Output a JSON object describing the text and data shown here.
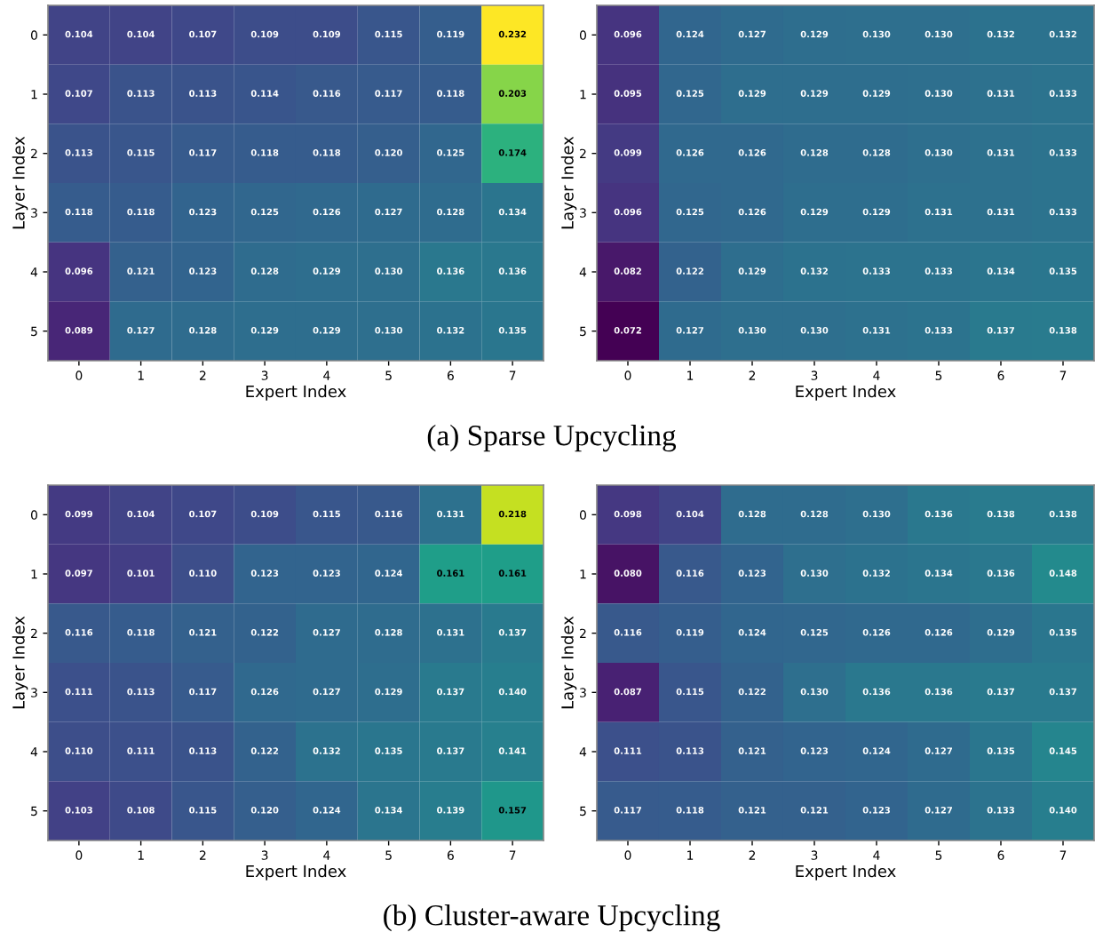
{
  "chart_data": [
    {
      "type": "heatmap",
      "xlabel": "Expert Index",
      "ylabel": "Layer Index",
      "data_labels": true,
      "annotations": [
        "(a) Sparse Upcycling"
      ],
      "categories": [
        "0",
        "1",
        "2",
        "3",
        "4",
        "5",
        "6",
        "7"
      ],
      "y_categories": [
        "0",
        "1",
        "2",
        "3",
        "4",
        "5"
      ],
      "cells": [
        [
          0.104,
          0.104,
          0.107,
          0.109,
          0.109,
          0.115,
          0.119,
          0.232
        ],
        [
          0.107,
          0.113,
          0.113,
          0.114,
          0.116,
          0.117,
          0.118,
          0.203
        ],
        [
          0.113,
          0.115,
          0.117,
          0.118,
          0.118,
          0.12,
          0.125,
          0.174
        ],
        [
          0.118,
          0.118,
          0.123,
          0.125,
          0.126,
          0.127,
          0.128,
          0.134
        ],
        [
          0.096,
          0.121,
          0.123,
          0.128,
          0.129,
          0.13,
          0.136,
          0.136
        ],
        [
          0.089,
          0.127,
          0.128,
          0.129,
          0.129,
          0.13,
          0.132,
          0.135
        ]
      ],
      "cell_labels": [
        [
          "0.104",
          "0.104",
          "0.107",
          "0.109",
          "0.109",
          "0.115",
          "0.119",
          "0.232"
        ],
        [
          "0.107",
          "0.113",
          "0.113",
          "0.114",
          "0.116",
          "0.117",
          "0.118",
          "0.203"
        ],
        [
          "0.113",
          "0.115",
          "0.117",
          "0.118",
          "0.118",
          "0.120",
          "0.125",
          "0.174"
        ],
        [
          "0.118",
          "0.118",
          "0.123",
          "0.125",
          "0.126",
          "0.127",
          "0.128",
          "0.134"
        ],
        [
          "0.096",
          "0.121",
          "0.123",
          "0.128",
          "0.129",
          "0.130",
          "0.136",
          "0.136"
        ],
        [
          "0.089",
          "0.127",
          "0.128",
          "0.129",
          "0.129",
          "0.130",
          "0.132",
          "0.135"
        ]
      ]
    },
    {
      "type": "heatmap",
      "xlabel": "Expert Index",
      "ylabel": "Layer Index",
      "data_labels": true,
      "categories": [
        "0",
        "1",
        "2",
        "3",
        "4",
        "5",
        "6",
        "7"
      ],
      "y_categories": [
        "0",
        "1",
        "2",
        "3",
        "4",
        "5"
      ],
      "cells": [
        [
          0.096,
          0.124,
          0.127,
          0.129,
          0.13,
          0.13,
          0.132,
          0.132
        ],
        [
          0.095,
          0.125,
          0.129,
          0.129,
          0.129,
          0.13,
          0.131,
          0.133
        ],
        [
          0.099,
          0.126,
          0.126,
          0.128,
          0.128,
          0.13,
          0.131,
          0.133
        ],
        [
          0.096,
          0.125,
          0.126,
          0.129,
          0.129,
          0.131,
          0.131,
          0.133
        ],
        [
          0.082,
          0.122,
          0.129,
          0.132,
          0.133,
          0.133,
          0.134,
          0.135
        ],
        [
          0.072,
          0.127,
          0.13,
          0.13,
          0.131,
          0.133,
          0.137,
          0.138
        ]
      ],
      "cell_labels": [
        [
          "0.096",
          "0.124",
          "0.127",
          "0.129",
          "0.130",
          "0.130",
          "0.132",
          "0.132"
        ],
        [
          "0.095",
          "0.125",
          "0.129",
          "0.129",
          "0.129",
          "0.130",
          "0.131",
          "0.133"
        ],
        [
          "0.099",
          "0.126",
          "0.126",
          "0.128",
          "0.128",
          "0.130",
          "0.131",
          "0.133"
        ],
        [
          "0.096",
          "0.125",
          "0.126",
          "0.129",
          "0.129",
          "0.131",
          "0.131",
          "0.133"
        ],
        [
          "0.082",
          "0.122",
          "0.129",
          "0.132",
          "0.133",
          "0.133",
          "0.134",
          "0.135"
        ],
        [
          "0.072",
          "0.127",
          "0.130",
          "0.130",
          "0.131",
          "0.133",
          "0.137",
          "0.138"
        ]
      ]
    },
    {
      "type": "heatmap",
      "xlabel": "Expert Index",
      "ylabel": "Layer Index",
      "data_labels": true,
      "annotations": [
        "(b) Cluster-aware Upcycling"
      ],
      "categories": [
        "0",
        "1",
        "2",
        "3",
        "4",
        "5",
        "6",
        "7"
      ],
      "y_categories": [
        "0",
        "1",
        "2",
        "3",
        "4",
        "5"
      ],
      "cells": [
        [
          0.099,
          0.104,
          0.107,
          0.109,
          0.115,
          0.116,
          0.131,
          0.218
        ],
        [
          0.097,
          0.101,
          0.11,
          0.123,
          0.123,
          0.124,
          0.161,
          0.161
        ],
        [
          0.116,
          0.118,
          0.121,
          0.122,
          0.127,
          0.128,
          0.131,
          0.137
        ],
        [
          0.111,
          0.113,
          0.117,
          0.126,
          0.127,
          0.129,
          0.137,
          0.14
        ],
        [
          0.11,
          0.111,
          0.113,
          0.122,
          0.132,
          0.135,
          0.137,
          0.141
        ],
        [
          0.103,
          0.108,
          0.115,
          0.12,
          0.124,
          0.134,
          0.139,
          0.157
        ]
      ],
      "cell_labels": [
        [
          "0.099",
          "0.104",
          "0.107",
          "0.109",
          "0.115",
          "0.116",
          "0.131",
          "0.218"
        ],
        [
          "0.097",
          "0.101",
          "0.110",
          "0.123",
          "0.123",
          "0.124",
          "0.161",
          "0.161"
        ],
        [
          "0.116",
          "0.118",
          "0.121",
          "0.122",
          "0.127",
          "0.128",
          "0.131",
          "0.137"
        ],
        [
          "0.111",
          "0.113",
          "0.117",
          "0.126",
          "0.127",
          "0.129",
          "0.137",
          "0.140"
        ],
        [
          "0.110",
          "0.111",
          "0.113",
          "0.122",
          "0.132",
          "0.135",
          "0.137",
          "0.141"
        ],
        [
          "0.103",
          "0.108",
          "0.115",
          "0.120",
          "0.124",
          "0.134",
          "0.139",
          "0.157"
        ]
      ]
    },
    {
      "type": "heatmap",
      "xlabel": "Expert Index",
      "ylabel": "Layer Index",
      "data_labels": true,
      "categories": [
        "0",
        "1",
        "2",
        "3",
        "4",
        "5",
        "6",
        "7"
      ],
      "y_categories": [
        "0",
        "1",
        "2",
        "3",
        "4",
        "5"
      ],
      "cells": [
        [
          0.098,
          0.104,
          0.128,
          0.128,
          0.13,
          0.136,
          0.138,
          0.138
        ],
        [
          0.08,
          0.116,
          0.123,
          0.13,
          0.132,
          0.134,
          0.136,
          0.148
        ],
        [
          0.116,
          0.119,
          0.124,
          0.125,
          0.126,
          0.126,
          0.129,
          0.135
        ],
        [
          0.087,
          0.115,
          0.122,
          0.13,
          0.136,
          0.136,
          0.137,
          0.137
        ],
        [
          0.111,
          0.113,
          0.121,
          0.123,
          0.124,
          0.127,
          0.135,
          0.145
        ],
        [
          0.117,
          0.118,
          0.121,
          0.121,
          0.123,
          0.127,
          0.133,
          0.14
        ]
      ],
      "cell_labels": [
        [
          "0.098",
          "0.104",
          "0.128",
          "0.128",
          "0.130",
          "0.136",
          "0.138",
          "0.138"
        ],
        [
          "0.080",
          "0.116",
          "0.123",
          "0.130",
          "0.132",
          "0.134",
          "0.136",
          "0.148"
        ],
        [
          "0.116",
          "0.119",
          "0.124",
          "0.125",
          "0.126",
          "0.126",
          "0.129",
          "0.135"
        ],
        [
          "0.087",
          "0.115",
          "0.122",
          "0.130",
          "0.136",
          "0.136",
          "0.137",
          "0.137"
        ],
        [
          "0.111",
          "0.113",
          "0.121",
          "0.123",
          "0.124",
          "0.127",
          "0.135",
          "0.145"
        ],
        [
          "0.117",
          "0.118",
          "0.121",
          "0.121",
          "0.123",
          "0.127",
          "0.133",
          "0.140"
        ]
      ]
    }
  ]
}
